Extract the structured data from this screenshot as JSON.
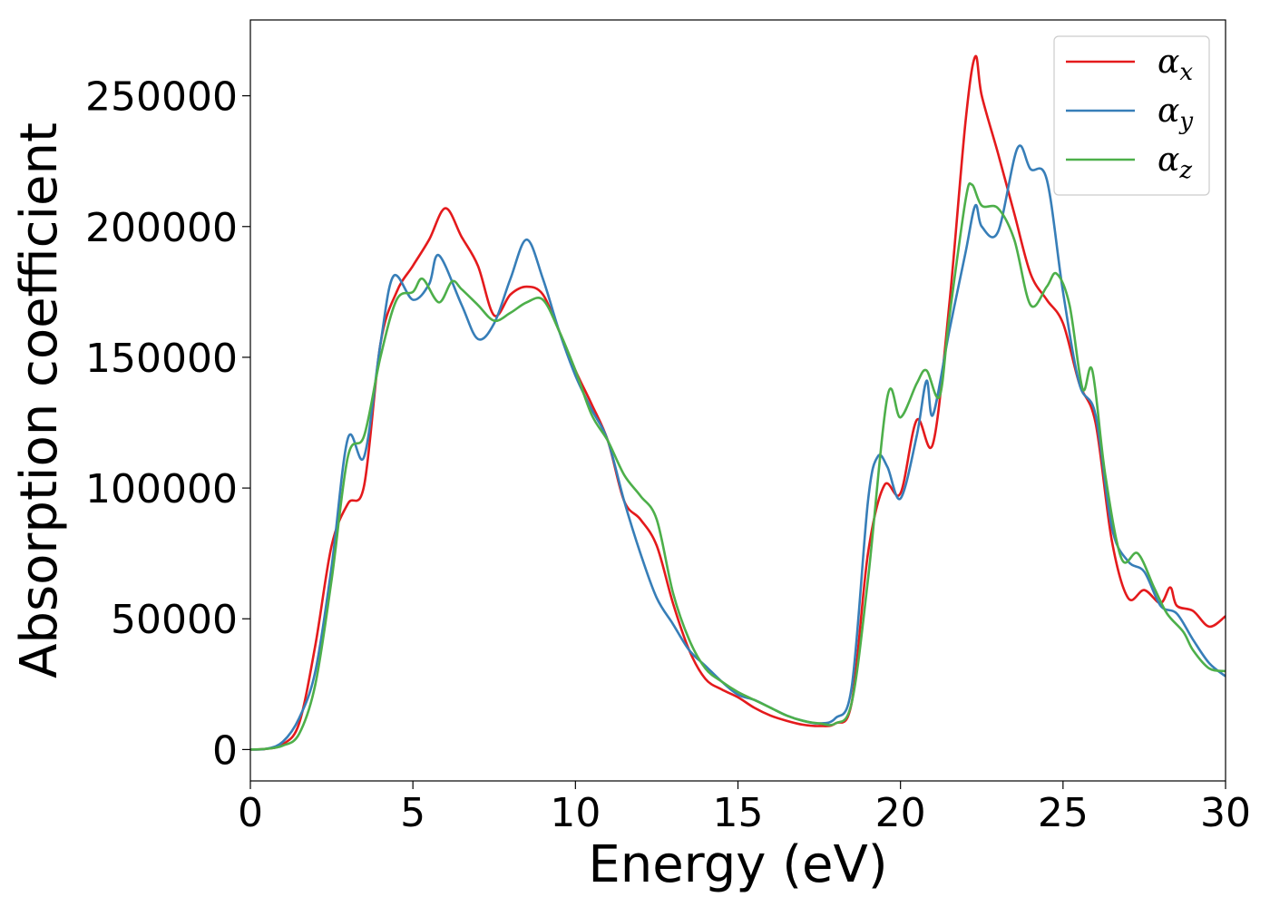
{
  "chart_data": {
    "type": "line",
    "xlabel": "Energy (eV)",
    "ylabel": "Absorption coefficient",
    "xlim": [
      0,
      30
    ],
    "ylim": [
      -12000,
      279000
    ],
    "xticks": [
      0,
      5,
      10,
      15,
      20,
      25,
      30
    ],
    "yticks": [
      0,
      50000,
      100000,
      150000,
      200000,
      250000
    ],
    "xtick_labels": [
      "0",
      "5",
      "10",
      "15",
      "20",
      "25",
      "30"
    ],
    "ytick_labels": [
      "0",
      "50000",
      "100000",
      "150000",
      "200000",
      "250000"
    ],
    "grid": false,
    "legend_position": "top-right",
    "series": [
      {
        "name": "α",
        "subscript": "x",
        "color": "#e41a1c",
        "x": [
          0,
          0.5,
          1,
          1.5,
          2,
          2.5,
          3,
          3.5,
          4,
          4.5,
          5,
          5.5,
          6,
          6.5,
          7,
          7.5,
          8,
          8.5,
          9,
          9.5,
          10,
          10.5,
          11,
          11.5,
          12,
          12.5,
          13,
          13.5,
          14,
          14.5,
          15,
          15.5,
          16,
          16.5,
          17,
          17.5,
          18,
          18.5,
          19,
          19.5,
          20,
          20.5,
          21,
          21.5,
          22,
          22.3,
          22.5,
          23,
          23.5,
          24,
          24.5,
          25,
          25.5,
          26,
          26.5,
          27,
          27.5,
          28,
          28.3,
          28.5,
          29,
          29.5,
          30
        ],
        "y": [
          0,
          300,
          2000,
          10000,
          40000,
          78000,
          94000,
          101000,
          155000,
          175000,
          185000,
          195000,
          207000,
          196000,
          185000,
          166000,
          174000,
          177000,
          174000,
          160000,
          145000,
          132000,
          118000,
          95000,
          88000,
          78000,
          56000,
          38000,
          27000,
          23000,
          20000,
          16000,
          13000,
          11000,
          9500,
          9000,
          10000,
          18000,
          75000,
          101000,
          98000,
          126000,
          117000,
          170000,
          240000,
          265000,
          250000,
          228000,
          205000,
          182000,
          172000,
          163000,
          140000,
          125000,
          80000,
          58000,
          61000,
          56000,
          62000,
          55000,
          53000,
          47000,
          51000
        ]
      },
      {
        "name": "α",
        "subscript": "y",
        "color": "#377eb8",
        "x": [
          0,
          0.5,
          1,
          1.5,
          2,
          2.5,
          3,
          3.5,
          4,
          4.4,
          5,
          5.5,
          5.8,
          6.5,
          7,
          7.5,
          8,
          8.5,
          9,
          9.5,
          10,
          10.5,
          11,
          11.5,
          12,
          12.5,
          13,
          13.5,
          14,
          14.5,
          15,
          15.5,
          16,
          16.5,
          17,
          17.5,
          18,
          18.5,
          19,
          19.3,
          19.6,
          20,
          20.5,
          20.8,
          21,
          21.5,
          22,
          22.3,
          22.5,
          23,
          23.6,
          24,
          24.5,
          25,
          25.5,
          26,
          26.5,
          27,
          27.5,
          28,
          28.5,
          29,
          29.5,
          30
        ],
        "y": [
          0,
          300,
          3000,
          12000,
          30000,
          70000,
          119000,
          112000,
          155000,
          181000,
          172000,
          178000,
          189000,
          170000,
          157000,
          163000,
          180000,
          195000,
          180000,
          160000,
          143000,
          130000,
          118000,
          95000,
          75000,
          58000,
          48000,
          38000,
          32000,
          26000,
          21000,
          19000,
          16000,
          13000,
          11000,
          10000,
          12000,
          24000,
          95000,
          112000,
          108000,
          96000,
          120000,
          141000,
          128000,
          160000,
          190000,
          208000,
          200000,
          198000,
          230000,
          222000,
          218000,
          175000,
          140000,
          128000,
          85000,
          72000,
          68000,
          55000,
          52000,
          42000,
          33000,
          28000
        ]
      },
      {
        "name": "α",
        "subscript": "z",
        "color": "#4daf4a",
        "x": [
          0,
          0.5,
          1,
          1.5,
          2,
          2.5,
          3,
          3.5,
          4,
          4.5,
          5,
          5.3,
          5.8,
          6.2,
          6.5,
          7,
          7.5,
          8,
          8.5,
          9,
          9.5,
          10,
          10.5,
          11,
          11.5,
          12,
          12.5,
          13,
          13.5,
          14,
          14.5,
          15,
          15.5,
          16,
          16.5,
          17,
          17.5,
          18,
          18.5,
          19,
          19.6,
          20,
          20.5,
          20.8,
          21.2,
          21.5,
          22,
          22.2,
          22.5,
          23,
          23.5,
          24,
          24.5,
          24.8,
          25.2,
          25.6,
          25.9,
          26.3,
          26.8,
          27.3,
          27.8,
          28.2,
          28.7,
          29,
          29.5,
          30
        ],
        "y": [
          0,
          300,
          1500,
          6000,
          25000,
          65000,
          112000,
          120000,
          150000,
          172000,
          175000,
          180000,
          171000,
          179000,
          176000,
          170000,
          164000,
          167000,
          171000,
          172000,
          160000,
          145000,
          128000,
          118000,
          105000,
          97000,
          88000,
          60000,
          42000,
          31000,
          26000,
          22000,
          19000,
          16000,
          13000,
          11000,
          10000,
          10000,
          18000,
          65000,
          135000,
          127000,
          140000,
          145000,
          135000,
          165000,
          210000,
          216000,
          208000,
          207000,
          195000,
          170000,
          177000,
          182000,
          170000,
          138000,
          145000,
          105000,
          73000,
          75000,
          62000,
          52000,
          45000,
          38000,
          31000,
          30000
        ]
      }
    ]
  }
}
